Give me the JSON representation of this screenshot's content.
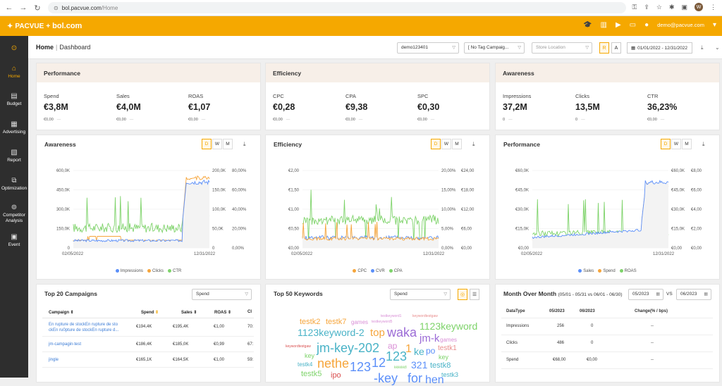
{
  "browser": {
    "url_host": "bol.pacvue.com",
    "url_path": "/Home",
    "avatar_letter": "W"
  },
  "brand": {
    "name": "PACVUE",
    "partner": "bol.com",
    "accent": "#f5a800"
  },
  "topbar": {
    "email": "demo@pacvue.com"
  },
  "sidebar": {
    "items": [
      {
        "label": "Home",
        "icon": "home-icon",
        "active": true
      },
      {
        "label": "Budget",
        "icon": "budget-icon"
      },
      {
        "label": "Advertising",
        "icon": "advertising-icon"
      },
      {
        "label": "Report",
        "icon": "report-icon"
      },
      {
        "label": "Optimization",
        "icon": "optimization-icon"
      },
      {
        "label": "Competitor Analysis",
        "icon": "competitor-icon"
      },
      {
        "label": "Event",
        "icon": "event-icon"
      }
    ]
  },
  "header": {
    "crumb_home": "Home",
    "crumb_page": "Dashboard",
    "profile": "demo123401",
    "tag_campaign": "[ No Tag Campaig...",
    "store_location": "Store Location",
    "r_label": "R",
    "a_label": "A",
    "date_range": "01/01/2022 - 12/31/2022"
  },
  "kpi": [
    {
      "title": "Performance",
      "items": [
        {
          "label": "Spend",
          "value": "€3,8M",
          "sub": "€0,00"
        },
        {
          "label": "Sales",
          "value": "€4,0M",
          "sub": "€0,00"
        },
        {
          "label": "ROAS",
          "value": "€1,07",
          "sub": "€0,00"
        }
      ]
    },
    {
      "title": "Efficiency",
      "items": [
        {
          "label": "CPC",
          "value": "€0,28",
          "sub": "€0,00"
        },
        {
          "label": "CPA",
          "value": "€9,38",
          "sub": "€0,00"
        },
        {
          "label": "SPC",
          "value": "€0,30",
          "sub": "€0,00"
        }
      ]
    },
    {
      "title": "Awareness",
      "items": [
        {
          "label": "Impressions",
          "value": "37,2M",
          "sub": "0"
        },
        {
          "label": "Clicks",
          "value": "13,5M",
          "sub": "0"
        },
        {
          "label": "CTR",
          "value": "36,23%",
          "sub": "€0,00"
        }
      ]
    }
  ],
  "dwm": [
    "D",
    "W",
    "M"
  ],
  "chart_data": [
    {
      "type": "line",
      "title": "Awareness",
      "x": [
        "02/05/2022",
        "12/31/2022"
      ],
      "y_left_ticks": [
        "0",
        "150,0K",
        "300,0K",
        "450,0K",
        "600,0K"
      ],
      "y_right_ticks": [
        "0",
        "50,0K",
        "100,0K",
        "150,0K",
        "200,0K"
      ],
      "y_right2_ticks": [
        "0,00%",
        "20,00%",
        "40,00%",
        "60,00%",
        "80,00%"
      ],
      "series": [
        {
          "name": "Impressions",
          "color": "#5b8ff9"
        },
        {
          "name": "Clicks",
          "color": "#f6a53b"
        },
        {
          "name": "CTR",
          "color": "#7ed36a"
        }
      ]
    },
    {
      "type": "line",
      "title": "Efficiency",
      "x": [
        "02/05/2022",
        "12/31/2022"
      ],
      "y_left_ticks": [
        "€0,00",
        "€0,50",
        "€1,00",
        "€1,50",
        "€2,00"
      ],
      "y_right_ticks": [
        "0,00%",
        "5,00%",
        "10,00%",
        "15,00%",
        "20,00%"
      ],
      "y_right2_ticks": [
        "€0,00",
        "€6,00",
        "€12,00",
        "€18,00",
        "€24,00"
      ],
      "series": [
        {
          "name": "CPC",
          "color": "#f6a53b"
        },
        {
          "name": "CVR",
          "color": "#5b8ff9"
        },
        {
          "name": "CPA",
          "color": "#7ed36a"
        }
      ]
    },
    {
      "type": "line",
      "title": "Performance",
      "x": [
        "02/05/2022",
        "12/31/2022"
      ],
      "y_left_ticks": [
        "€0,00",
        "€15,0K",
        "€30,0K",
        "€45,0K",
        "€60,0K"
      ],
      "y_right_ticks": [
        "€0,00",
        "€15,0K",
        "€30,0K",
        "€45,0K",
        "€60,0K"
      ],
      "y_right2_ticks": [
        "€0,00",
        "€2,00",
        "€4,00",
        "€6,00",
        "€8,00"
      ],
      "series": [
        {
          "name": "Sales",
          "color": "#5b8ff9"
        },
        {
          "name": "Spend",
          "color": "#f6a53b"
        },
        {
          "name": "ROAS",
          "color": "#7ed36a"
        }
      ]
    }
  ],
  "campaigns": {
    "title": "Top 20 Campaigns",
    "metric": "Spend",
    "headers": [
      "Campaign",
      "Spend",
      "Sales",
      "ROAS",
      "Cl"
    ],
    "rows": [
      {
        "name": "En rupture de stockEn rupture de sto ckEn ru0pture de stockEn rupture d...",
        "spend": "€194,4K",
        "sales": "€195,4K",
        "roas": "€1,00",
        "cl": "70:"
      },
      {
        "name": "jm-campagin-test",
        "spend": "€186,4K",
        "sales": "€185,0K",
        "roas": "€0,99",
        "cl": "67:"
      },
      {
        "name": "jingle",
        "spend": "€165,1K",
        "sales": "€164,5K",
        "roas": "€1,00",
        "cl": "59:"
      }
    ]
  },
  "keywords": {
    "title": "Top 50 Keywords",
    "metric": "Spend",
    "words": [
      "testk2",
      "testk7",
      "games",
      "testkeyword1",
      "keywordtestgaw",
      "testkeyword5",
      "1123keyword-2",
      "top",
      "waka",
      "1123keyword",
      "jm-k",
      "games",
      "keywordtestgaw",
      "jm-key-202",
      "ap",
      "1",
      "ke",
      "po",
      "testk1",
      "key",
      "nethe",
      "123",
      "12",
      "123",
      "key",
      "testk4",
      "321",
      "testk8",
      "kkkkkk8",
      "testk5",
      "ipo",
      "-key",
      "for",
      "hen",
      "testk3"
    ]
  },
  "mom": {
    "title": "Month Over Month",
    "subtitle": "(05/01 - 05/31 vs 06/01 - 06/30)",
    "month_a": "05/2023",
    "vs": "VS",
    "month_b": "06/2023",
    "headers": [
      "DataType",
      "05/2023",
      "06/2023",
      "Change(% / bps)"
    ],
    "rows": [
      {
        "type": "Impressions",
        "a": "256",
        "b": "0",
        "change": "--"
      },
      {
        "type": "Clicks",
        "a": "486",
        "b": "0",
        "change": "--"
      },
      {
        "type": "Spend",
        "a": "€68,00",
        "b": "€0,00",
        "change": "--"
      }
    ]
  }
}
